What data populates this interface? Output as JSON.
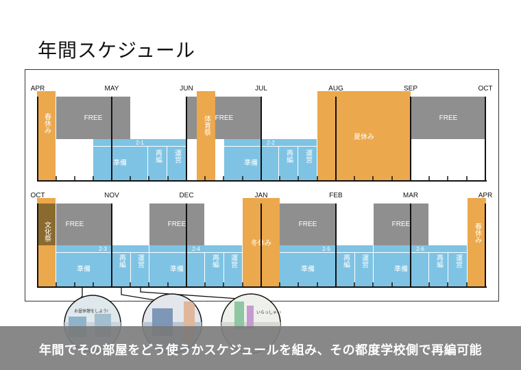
{
  "title": "年間スケジュール",
  "caption": "年間でその部屋をどう使うかスケジュールを組み、その都度学校側で再編可能",
  "colors": {
    "orange": "#eca84c",
    "gray": "#8f8f8f",
    "blue": "#7ec3e3",
    "brown": "#8b6a2e",
    "axis": "#111111"
  },
  "rows": [
    {
      "months": [
        "APR",
        "MAY",
        "JUN",
        "JUL",
        "AUG",
        "SEP",
        "OCT"
      ],
      "bars": [
        {
          "kind": "free",
          "label": "FREE"
        },
        {
          "kind": "free",
          "label": "FREE"
        },
        {
          "kind": "free",
          "label": "FREE"
        },
        {
          "kind": "term",
          "label": "2-1"
        },
        {
          "kind": "term",
          "label": "2-2"
        },
        {
          "kind": "task",
          "label": "準備"
        },
        {
          "kind": "task",
          "label": "再編"
        },
        {
          "kind": "task",
          "label": "運営"
        },
        {
          "kind": "task",
          "label": "準備"
        },
        {
          "kind": "task",
          "label": "再編"
        },
        {
          "kind": "task",
          "label": "運営"
        },
        {
          "kind": "holiday",
          "label": "春休み"
        },
        {
          "kind": "holiday",
          "label": "体育祭"
        },
        {
          "kind": "holiday",
          "label": "夏休み"
        }
      ]
    },
    {
      "months": [
        "OCT",
        "NOV",
        "DEC",
        "JAN",
        "FEB",
        "MAR",
        "APR"
      ],
      "bars": [
        {
          "kind": "free",
          "label": "FREE"
        },
        {
          "kind": "free",
          "label": "FREE"
        },
        {
          "kind": "free",
          "label": "FREE"
        },
        {
          "kind": "free",
          "label": "FREE"
        },
        {
          "kind": "term",
          "label": "2-3"
        },
        {
          "kind": "term",
          "label": "2-4"
        },
        {
          "kind": "term",
          "label": "2-5"
        },
        {
          "kind": "term",
          "label": "2-6"
        },
        {
          "kind": "task",
          "label": "準備"
        },
        {
          "kind": "task",
          "label": "再編"
        },
        {
          "kind": "task",
          "label": "運営"
        },
        {
          "kind": "task",
          "label": "準備"
        },
        {
          "kind": "task",
          "label": "再編"
        },
        {
          "kind": "task",
          "label": "運営"
        },
        {
          "kind": "task",
          "label": "準備"
        },
        {
          "kind": "task",
          "label": "再編"
        },
        {
          "kind": "task",
          "label": "運営"
        },
        {
          "kind": "task",
          "label": "準備"
        },
        {
          "kind": "task",
          "label": "再編"
        },
        {
          "kind": "task",
          "label": "運営"
        },
        {
          "kind": "holiday",
          "label": "文化祭"
        },
        {
          "kind": "holiday",
          "label": "冬休み"
        },
        {
          "kind": "holiday",
          "label": "春休み"
        }
      ]
    }
  ],
  "photo_bubble_texts": [
    "お昼休憩をしよう!",
    "いらっしゃい"
  ]
}
